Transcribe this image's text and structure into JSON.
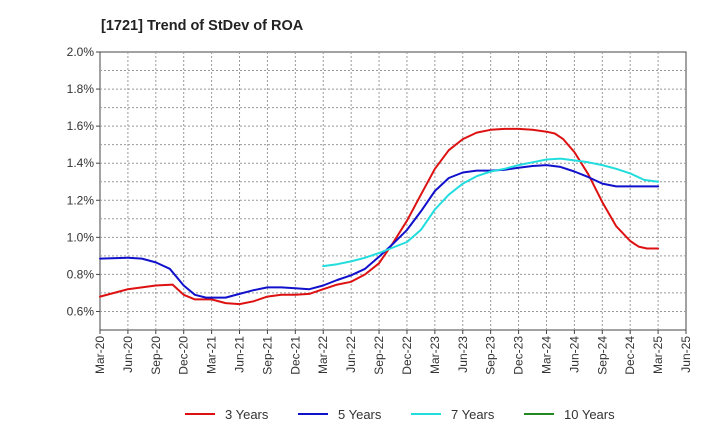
{
  "chart_data": {
    "type": "line",
    "title": "[1721]  Trend of StDev of ROA",
    "xlabel": "",
    "ylabel": "",
    "ylim": [
      0.5,
      2.0
    ],
    "yticks": [
      0.6,
      0.8,
      1.0,
      1.2,
      1.4,
      1.6,
      1.8,
      2.0
    ],
    "ytick_labels": [
      "0.6%",
      "0.8%",
      "1.0%",
      "1.2%",
      "1.4%",
      "1.6%",
      "1.8%",
      "2.0%"
    ],
    "x_ticks": [
      "Mar-20",
      "Jun-20",
      "Sep-20",
      "Dec-20",
      "Mar-21",
      "Jun-21",
      "Sep-21",
      "Dec-21",
      "Mar-22",
      "Jun-22",
      "Sep-22",
      "Dec-22",
      "Mar-23",
      "Jun-23",
      "Sep-23",
      "Dec-23",
      "Mar-24",
      "Jun-24",
      "Sep-24",
      "Dec-24",
      "Mar-25",
      "Jun-25"
    ],
    "grid": true,
    "legend_position": "bottom",
    "series": [
      {
        "name": "3 Years",
        "color": "#dd1111",
        "points": [
          [
            0,
            0.68
          ],
          [
            1,
            0.72
          ],
          [
            2,
            0.74
          ],
          [
            2.6,
            0.745
          ],
          [
            3,
            0.69
          ],
          [
            3.4,
            0.665
          ],
          [
            4,
            0.665
          ],
          [
            4.5,
            0.645
          ],
          [
            5,
            0.64
          ],
          [
            5.5,
            0.655
          ],
          [
            6,
            0.68
          ],
          [
            6.5,
            0.69
          ],
          [
            7,
            0.69
          ],
          [
            7.5,
            0.695
          ],
          [
            8,
            0.72
          ],
          [
            8.5,
            0.745
          ],
          [
            9,
            0.76
          ],
          [
            9.5,
            0.8
          ],
          [
            10,
            0.86
          ],
          [
            10.5,
            0.97
          ],
          [
            11,
            1.09
          ],
          [
            11.5,
            1.23
          ],
          [
            12,
            1.37
          ],
          [
            12.5,
            1.47
          ],
          [
            13,
            1.53
          ],
          [
            13.5,
            1.565
          ],
          [
            14,
            1.58
          ],
          [
            14.5,
            1.585
          ],
          [
            15,
            1.585
          ],
          [
            15.5,
            1.58
          ],
          [
            16,
            1.57
          ],
          [
            16.3,
            1.56
          ],
          [
            16.6,
            1.53
          ],
          [
            17,
            1.46
          ],
          [
            17.5,
            1.34
          ],
          [
            18,
            1.19
          ],
          [
            18.5,
            1.06
          ],
          [
            19,
            0.98
          ],
          [
            19.3,
            0.95
          ],
          [
            19.6,
            0.94
          ],
          [
            20,
            0.94
          ]
        ]
      },
      {
        "name": "5 Years",
        "color": "#1111cc",
        "points": [
          [
            0,
            0.885
          ],
          [
            1,
            0.89
          ],
          [
            1.5,
            0.885
          ],
          [
            2,
            0.865
          ],
          [
            2.5,
            0.83
          ],
          [
            3,
            0.74
          ],
          [
            3.4,
            0.69
          ],
          [
            3.8,
            0.675
          ],
          [
            4,
            0.675
          ],
          [
            4.5,
            0.675
          ],
          [
            5,
            0.695
          ],
          [
            5.5,
            0.715
          ],
          [
            6,
            0.73
          ],
          [
            6.5,
            0.73
          ],
          [
            7,
            0.725
          ],
          [
            7.5,
            0.72
          ],
          [
            8,
            0.74
          ],
          [
            8.5,
            0.77
          ],
          [
            9,
            0.795
          ],
          [
            9.5,
            0.83
          ],
          [
            10,
            0.895
          ],
          [
            10.5,
            0.965
          ],
          [
            11,
            1.04
          ],
          [
            11.5,
            1.14
          ],
          [
            12,
            1.25
          ],
          [
            12.5,
            1.32
          ],
          [
            13,
            1.35
          ],
          [
            13.5,
            1.36
          ],
          [
            14,
            1.36
          ],
          [
            14.5,
            1.365
          ],
          [
            15,
            1.375
          ],
          [
            15.5,
            1.385
          ],
          [
            16,
            1.39
          ],
          [
            16.5,
            1.38
          ],
          [
            17,
            1.355
          ],
          [
            17.5,
            1.325
          ],
          [
            18,
            1.29
          ],
          [
            18.5,
            1.275
          ],
          [
            19,
            1.275
          ],
          [
            19.5,
            1.275
          ],
          [
            20,
            1.275
          ]
        ]
      },
      {
        "name": "7 Years",
        "color": "#22dddd",
        "points": [
          [
            8,
            0.845
          ],
          [
            8.5,
            0.855
          ],
          [
            9,
            0.87
          ],
          [
            9.5,
            0.89
          ],
          [
            10,
            0.915
          ],
          [
            10.5,
            0.945
          ],
          [
            11,
            0.975
          ],
          [
            11.5,
            1.04
          ],
          [
            12,
            1.15
          ],
          [
            12.5,
            1.23
          ],
          [
            13,
            1.29
          ],
          [
            13.5,
            1.33
          ],
          [
            14,
            1.355
          ],
          [
            14.5,
            1.37
          ],
          [
            15,
            1.39
          ],
          [
            15.5,
            1.405
          ],
          [
            16,
            1.42
          ],
          [
            16.5,
            1.425
          ],
          [
            17,
            1.415
          ],
          [
            17.5,
            1.405
          ],
          [
            18,
            1.39
          ],
          [
            18.5,
            1.37
          ],
          [
            19,
            1.345
          ],
          [
            19.5,
            1.31
          ],
          [
            20,
            1.3
          ]
        ]
      },
      {
        "name": "10 Years",
        "color": "#228822",
        "points": []
      }
    ]
  }
}
